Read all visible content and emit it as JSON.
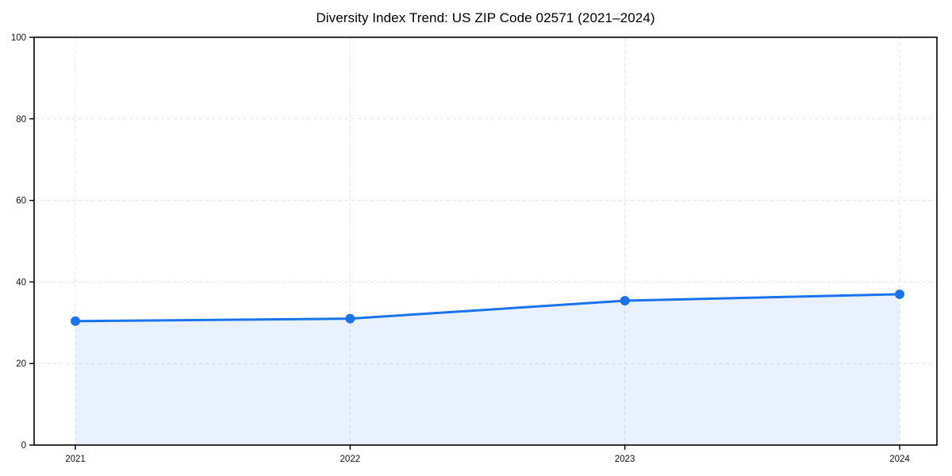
{
  "chart_data": {
    "type": "line",
    "subtype": "area-filled-line-with-markers",
    "title": "Diversity Index Trend: US ZIP Code 02571 (2021–2024)",
    "x": [
      "2021",
      "2022",
      "2023",
      "2024"
    ],
    "series": [
      {
        "name": "Diversity Index",
        "values": [
          30.4,
          31.0,
          35.4,
          37.0
        ]
      }
    ],
    "xlabel": "",
    "ylabel": "",
    "ylim": [
      0,
      100
    ],
    "yticks": [
      0,
      20,
      40,
      60,
      80,
      100
    ],
    "grid": {
      "visible": true,
      "style": "dashed",
      "color": "#e4e4e4"
    },
    "legend": {
      "visible": false,
      "position": "none"
    },
    "colors": {
      "line": "#1a73e8",
      "marker": "#1a73e8",
      "fill": "#1a73e8",
      "fill_opacity": 0.1,
      "spine": "#000000",
      "tick_text": "#111111",
      "title_text": "#000000",
      "background": "#ffffff"
    }
  }
}
